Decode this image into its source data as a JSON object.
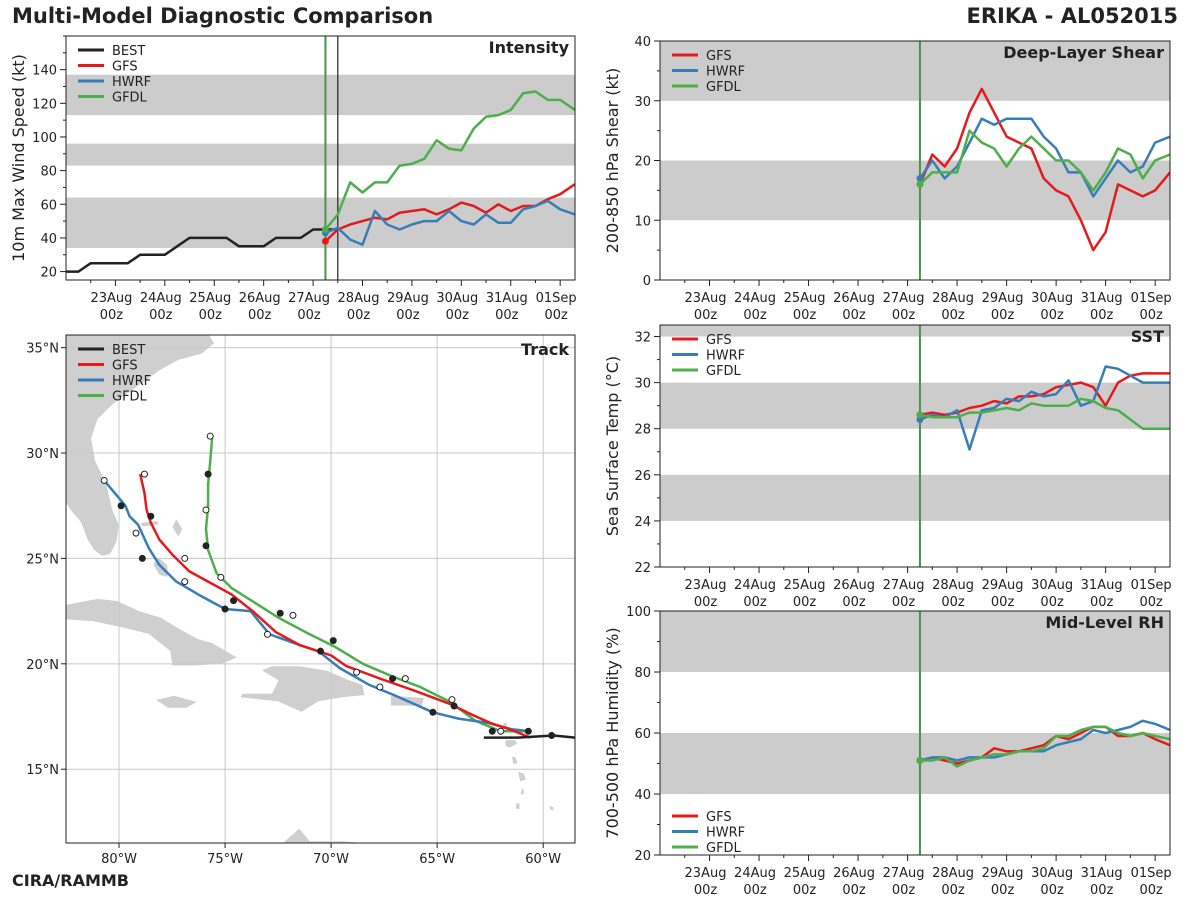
{
  "header": {
    "title": "Multi-Model Diagnostic Comparison",
    "storm": "ERIKA - AL052015",
    "credit": "CIRA/RAMMB"
  },
  "colors": {
    "BEST": "#222222",
    "GFS": "#e41a1c",
    "HWRF": "#377eb8",
    "GFDL": "#4daf4a",
    "band": "#cccccc",
    "land": "#cfcfcf",
    "init_line": "#4a934a"
  },
  "time_axis": {
    "tick_labels": [
      [
        "23Aug",
        "00z"
      ],
      [
        "24Aug",
        "00z"
      ],
      [
        "25Aug",
        "00z"
      ],
      [
        "26Aug",
        "00z"
      ],
      [
        "27Aug",
        "00z"
      ],
      [
        "28Aug",
        "00z"
      ],
      [
        "29Aug",
        "00z"
      ],
      [
        "30Aug",
        "00z"
      ],
      [
        "31Aug",
        "00z"
      ],
      [
        "01Sep",
        "00z"
      ]
    ],
    "tick_days": [
      1,
      2,
      3,
      4,
      5,
      6,
      7,
      8,
      9,
      10
    ],
    "range_days": [
      0,
      10.3
    ],
    "init_day": 5.25
  },
  "chart_data": [
    {
      "id": "intensity",
      "type": "line",
      "title": "Intensity",
      "ylabel": "10m Max Wind Speed (kt)",
      "ylim": [
        15,
        160
      ],
      "yticks": [
        20,
        40,
        60,
        80,
        100,
        120,
        140
      ],
      "bands": [
        [
          34,
          64
        ],
        [
          83,
          96
        ],
        [
          113,
          137
        ]
      ],
      "current_day": 5.5,
      "legend": [
        "BEST",
        "GFS",
        "HWRF",
        "GFDL"
      ],
      "legend_position": "top-left",
      "series": [
        {
          "name": "BEST",
          "x": [
            0,
            0.25,
            0.5,
            0.75,
            1,
            1.25,
            1.5,
            1.75,
            2,
            2.25,
            2.5,
            2.75,
            3,
            3.25,
            3.5,
            3.75,
            4,
            4.25,
            4.5,
            4.75,
            5,
            5.25,
            5.5
          ],
          "y": [
            20,
            20,
            25,
            25,
            25,
            25,
            30,
            30,
            30,
            35,
            40,
            40,
            40,
            40,
            35,
            35,
            35,
            40,
            40,
            40,
            45,
            45,
            45
          ]
        },
        {
          "name": "GFS",
          "x": [
            5.25,
            5.5,
            5.75,
            6,
            6.25,
            6.5,
            6.75,
            7,
            7.25,
            7.5,
            7.75,
            8,
            8.25,
            8.5,
            8.75,
            9,
            9.25,
            9.5,
            9.75,
            10,
            10.3
          ],
          "y": [
            38,
            45,
            48,
            50,
            52,
            51,
            55,
            56,
            57,
            54,
            57,
            61,
            59,
            55,
            60,
            56,
            59,
            59,
            63,
            66,
            72
          ]
        },
        {
          "name": "HWRF",
          "x": [
            5.25,
            5.5,
            5.75,
            6,
            6.25,
            6.5,
            6.75,
            7,
            7.25,
            7.5,
            7.75,
            8,
            8.25,
            8.5,
            8.75,
            9,
            9.25,
            9.5,
            9.75,
            10,
            10.3
          ],
          "y": [
            43,
            46,
            39,
            36,
            56,
            48,
            45,
            48,
            50,
            50,
            56,
            50,
            48,
            54,
            49,
            49,
            57,
            59,
            62,
            57,
            54
          ]
        },
        {
          "name": "GFDL",
          "x": [
            5.25,
            5.5,
            5.75,
            6,
            6.25,
            6.5,
            6.75,
            7,
            7.25,
            7.5,
            7.75,
            8,
            8.25,
            8.5,
            8.75,
            9,
            9.25,
            9.5,
            9.75,
            10,
            10.3
          ],
          "y": [
            45,
            54,
            73,
            67,
            73,
            73,
            83,
            84,
            87,
            98,
            93,
            92,
            105,
            112,
            113,
            116,
            126,
            127,
            122,
            122,
            116
          ]
        }
      ]
    },
    {
      "id": "shear",
      "type": "line",
      "title": "Deep-Layer Shear",
      "ylabel": "200-850 hPa Shear (kt)",
      "ylim": [
        0,
        40
      ],
      "yticks": [
        0,
        10,
        20,
        30,
        40
      ],
      "bands": [
        [
          10,
          20
        ],
        [
          30,
          40
        ]
      ],
      "legend": [
        "GFS",
        "HWRF",
        "GFDL"
      ],
      "legend_position": "top-left",
      "series": [
        {
          "name": "GFS",
          "x": [
            5.25,
            5.5,
            5.75,
            6,
            6.25,
            6.5,
            6.75,
            7,
            7.25,
            7.5,
            7.75,
            8,
            8.25,
            8.5,
            8.75,
            9,
            9.25,
            9.5,
            9.75,
            10,
            10.3
          ],
          "y": [
            16,
            21,
            19,
            22,
            28,
            32,
            28,
            24,
            23,
            22,
            17,
            15,
            14,
            10,
            5,
            8,
            16,
            15,
            14,
            15,
            18
          ]
        },
        {
          "name": "HWRF",
          "x": [
            5.25,
            5.5,
            5.75,
            6,
            6.25,
            6.5,
            6.75,
            7,
            7.25,
            7.5,
            7.75,
            8,
            8.25,
            8.5,
            8.75,
            9,
            9.25,
            9.5,
            9.75,
            10,
            10.3
          ],
          "y": [
            17,
            20,
            17,
            19,
            23,
            27,
            26,
            27,
            27,
            27,
            24,
            22,
            18,
            18,
            14,
            17,
            20,
            18,
            19,
            23,
            24
          ]
        },
        {
          "name": "GFDL",
          "x": [
            5.25,
            5.5,
            5.75,
            6,
            6.25,
            6.5,
            6.75,
            7,
            7.25,
            7.5,
            7.75,
            8,
            8.25,
            8.5,
            8.75,
            9,
            9.25,
            9.5,
            9.75,
            10,
            10.3
          ],
          "y": [
            16,
            18,
            18,
            18,
            25,
            23,
            22,
            19,
            22,
            24,
            22,
            20,
            20,
            18,
            15,
            18,
            22,
            21,
            17,
            20,
            21
          ]
        }
      ]
    },
    {
      "id": "track",
      "type": "map",
      "title": "Track",
      "lon_range": [
        -82.5,
        -58.5
      ],
      "lat_range": [
        11.5,
        35.6
      ],
      "lon_ticks": [
        -80,
        -75,
        -70,
        -65,
        -60
      ],
      "lon_labels": [
        "80°W",
        "75°W",
        "70°W",
        "65°W",
        "60°W"
      ],
      "lat_ticks": [
        15,
        20,
        25,
        30,
        35
      ],
      "lat_labels": [
        "15°N",
        "20°N",
        "25°N",
        "30°N",
        "35°N"
      ],
      "legend": [
        "BEST",
        "GFS",
        "HWRF",
        "GFDL"
      ],
      "legend_position": "top-left",
      "series": [
        {
          "name": "BEST",
          "lon": [
            -62.8,
            -61.2,
            -59.5,
            -58.5
          ],
          "lat": [
            16.5,
            16.5,
            16.6,
            16.5
          ],
          "marker_lon": [
            -59.6
          ],
          "marker_lat": [
            16.6
          ]
        },
        {
          "name": "GFS",
          "lon": [
            -60.6,
            -61.6,
            -62.5,
            -63.6,
            -64.4,
            -66.0,
            -67.7,
            -69.3,
            -70.0,
            -71.5,
            -72.6,
            -73.7,
            -74.7,
            -75.8,
            -76.7,
            -77.5,
            -78.1,
            -78.5,
            -78.7,
            -78.8,
            -79.0
          ],
          "lat": [
            16.5,
            16.9,
            17.2,
            17.7,
            18.1,
            18.7,
            19.3,
            19.9,
            20.4,
            20.9,
            21.5,
            22.5,
            23.3,
            23.9,
            24.4,
            25.2,
            25.9,
            26.7,
            27.3,
            28.1,
            29.0
          ],
          "marker_lon": [
            -64.2,
            -66.5,
            -69.9,
            -71.8,
            -74.6,
            -76.9,
            -78.5,
            -78.8
          ],
          "marker_lat": [
            18.0,
            19.3,
            21.1,
            22.3,
            23.0,
            25.0,
            27.0,
            29.0
          ]
        },
        {
          "name": "HWRF",
          "lon": [
            -60.6,
            -61.5,
            -62.6,
            -64.0,
            -65.2,
            -67.0,
            -68.2,
            -69.6,
            -70.6,
            -71.5,
            -72.9,
            -73.8,
            -75.0,
            -76.1,
            -77.3,
            -78.1,
            -78.6,
            -79.1,
            -79.5,
            -79.7,
            -80.2,
            -80.7
          ],
          "lat": [
            16.8,
            16.9,
            17.2,
            17.4,
            17.7,
            18.5,
            19.0,
            19.8,
            20.6,
            20.9,
            21.4,
            22.5,
            22.6,
            23.2,
            23.9,
            24.7,
            25.5,
            26.6,
            27.0,
            27.5,
            28.1,
            28.7
          ],
          "marker_lon": [
            -60.7,
            -62.0,
            -65.2,
            -67.7,
            -70.5,
            -73.0,
            -75.0,
            -76.9,
            -78.9,
            -79.2,
            -79.9,
            -80.7
          ],
          "marker_lat": [
            16.8,
            16.8,
            17.7,
            18.9,
            20.6,
            21.4,
            22.6,
            23.9,
            25.0,
            26.2,
            27.5,
            28.7
          ]
        },
        {
          "name": "GFDL",
          "lon": [
            -60.8,
            -62.0,
            -63.2,
            -64.4,
            -65.8,
            -67.1,
            -68.5,
            -69.8,
            -71.2,
            -72.5,
            -73.6,
            -74.7,
            -75.4,
            -75.8,
            -75.9,
            -75.8,
            -75.8,
            -75.7,
            -75.6
          ],
          "lat": [
            16.8,
            16.8,
            17.3,
            18.2,
            18.9,
            19.4,
            20.0,
            20.8,
            21.5,
            22.2,
            22.9,
            23.6,
            24.3,
            25.4,
            26.4,
            27.5,
            28.5,
            29.6,
            30.8
          ],
          "marker_lon": [
            -62.4,
            -64.3,
            -67.1,
            -68.8,
            -72.4,
            -75.2,
            -75.9,
            -75.9,
            -75.8,
            -75.7
          ],
          "marker_lat": [
            16.8,
            18.3,
            19.3,
            19.6,
            22.4,
            24.1,
            25.6,
            27.3,
            29.0,
            30.8
          ]
        }
      ]
    },
    {
      "id": "sst",
      "type": "line",
      "title": "SST",
      "ylabel": "Sea Surface Temp (°C)",
      "ylim": [
        22,
        32.5
      ],
      "yticks": [
        22,
        24,
        26,
        28,
        30,
        32
      ],
      "bands": [
        [
          24,
          26
        ],
        [
          28,
          30
        ],
        [
          32,
          34
        ]
      ],
      "legend": [
        "GFS",
        "HWRF",
        "GFDL"
      ],
      "legend_position": "top-left",
      "series": [
        {
          "name": "GFS",
          "x": [
            5.25,
            5.5,
            5.75,
            6,
            6.25,
            6.5,
            6.75,
            7,
            7.25,
            7.5,
            7.75,
            8,
            8.25,
            8.5,
            8.75,
            9,
            9.25,
            9.5,
            9.75,
            10,
            10.3
          ],
          "y": [
            28.6,
            28.7,
            28.6,
            28.7,
            28.9,
            29.0,
            29.2,
            29.1,
            29.4,
            29.4,
            29.5,
            29.8,
            29.9,
            30.0,
            29.8,
            29.0,
            30.0,
            30.3,
            30.4,
            30.4,
            30.4
          ]
        },
        {
          "name": "HWRF",
          "x": [
            5.25,
            5.5,
            5.75,
            6,
            6.25,
            6.5,
            6.75,
            7,
            7.25,
            7.5,
            7.75,
            8,
            8.25,
            8.5,
            8.75,
            9,
            9.25,
            9.5,
            9.75,
            10,
            10.3
          ],
          "y": [
            28.4,
            28.6,
            28.5,
            28.8,
            27.1,
            28.8,
            28.9,
            29.3,
            29.2,
            29.6,
            29.4,
            29.5,
            30.1,
            29.0,
            29.2,
            30.7,
            30.6,
            30.3,
            30.0,
            30.0,
            30.0
          ]
        },
        {
          "name": "GFDL",
          "x": [
            5.25,
            5.5,
            5.75,
            6,
            6.25,
            6.5,
            6.75,
            7,
            7.25,
            7.5,
            7.75,
            8,
            8.25,
            8.5,
            8.75,
            9,
            9.25,
            9.5,
            9.75,
            10,
            10.3
          ],
          "y": [
            28.6,
            28.5,
            28.5,
            28.5,
            28.7,
            28.7,
            28.8,
            28.9,
            28.8,
            29.1,
            29.0,
            29.0,
            29.0,
            29.3,
            29.2,
            28.9,
            28.8,
            28.4,
            28.0,
            28.0,
            28.0
          ]
        }
      ]
    },
    {
      "id": "rh",
      "type": "line",
      "title": "Mid-Level RH",
      "ylabel": "700-500 hPa Humidity (%)",
      "ylim": [
        20,
        100
      ],
      "yticks": [
        20,
        40,
        60,
        80,
        100
      ],
      "bands": [
        [
          40,
          60
        ],
        [
          80,
          100
        ]
      ],
      "legend": [
        "GFS",
        "HWRF",
        "GFDL"
      ],
      "legend_position": "bottom-left",
      "series": [
        {
          "name": "GFS",
          "x": [
            5.25,
            5.5,
            5.75,
            6,
            6.25,
            6.5,
            6.75,
            7,
            7.25,
            7.5,
            7.75,
            8,
            8.25,
            8.5,
            8.75,
            9,
            9.25,
            9.5,
            9.75,
            10,
            10.3
          ],
          "y": [
            51,
            52,
            51,
            50,
            51,
            52,
            55,
            54,
            54,
            55,
            56,
            59,
            58,
            60,
            62,
            62,
            59,
            59,
            60,
            58,
            56
          ]
        },
        {
          "name": "HWRF",
          "x": [
            5.25,
            5.5,
            5.75,
            6,
            6.25,
            6.5,
            6.75,
            7,
            7.25,
            7.5,
            7.75,
            8,
            8.25,
            8.5,
            8.75,
            9,
            9.25,
            9.5,
            9.75,
            10,
            10.3
          ],
          "y": [
            51,
            52,
            52,
            51,
            52,
            52,
            52,
            53,
            54,
            54,
            54,
            56,
            57,
            58,
            61,
            60,
            61,
            62,
            64,
            63,
            61
          ]
        },
        {
          "name": "GFDL",
          "x": [
            5.25,
            5.5,
            5.75,
            6,
            6.25,
            6.5,
            6.75,
            7,
            7.25,
            7.5,
            7.75,
            8,
            8.25,
            8.5,
            8.75,
            9,
            9.25,
            9.5,
            9.75,
            10,
            10.3
          ],
          "y": [
            51,
            51,
            52,
            49,
            51,
            52,
            53,
            53,
            54,
            54,
            55,
            59,
            59,
            61,
            62,
            62,
            60,
            59,
            60,
            59,
            58
          ]
        }
      ]
    }
  ]
}
